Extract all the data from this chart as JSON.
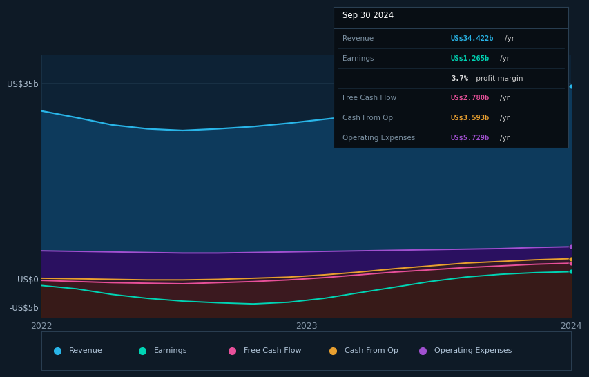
{
  "background_color": "#0e1a26",
  "chart_bg_color": "#0d2235",
  "grid_color": "#1b3347",
  "x_labels": [
    "2022",
    "2023",
    "2024"
  ],
  "ylim": [
    -7,
    40
  ],
  "yticks": [
    -5,
    0,
    35
  ],
  "ytick_labels": [
    "-US$5b",
    "US$0",
    "US$35b"
  ],
  "series": {
    "Revenue": {
      "color": "#29b5e8",
      "fill_color": "#0d3a5c",
      "x": [
        0.0,
        0.2,
        0.4,
        0.6,
        0.8,
        1.0,
        1.2,
        1.4,
        1.6,
        1.8,
        2.0,
        2.2,
        2.4,
        2.6,
        2.8,
        3.0
      ],
      "y": [
        30.0,
        28.8,
        27.5,
        26.8,
        26.5,
        26.8,
        27.2,
        27.8,
        28.5,
        29.2,
        30.0,
        31.0,
        32.0,
        33.0,
        33.8,
        34.422
      ]
    },
    "Earnings": {
      "color": "#00d4b4",
      "x": [
        0.0,
        0.2,
        0.4,
        0.6,
        0.8,
        1.0,
        1.2,
        1.4,
        1.6,
        1.8,
        2.0,
        2.2,
        2.4,
        2.6,
        2.8,
        3.0
      ],
      "y": [
        -1.2,
        -1.8,
        -2.8,
        -3.5,
        -4.0,
        -4.3,
        -4.5,
        -4.2,
        -3.5,
        -2.5,
        -1.5,
        -0.5,
        0.3,
        0.8,
        1.1,
        1.265
      ]
    },
    "FreeCashFlow": {
      "color": "#e8509a",
      "x": [
        0.0,
        0.2,
        0.4,
        0.6,
        0.8,
        1.0,
        1.2,
        1.4,
        1.6,
        1.8,
        2.0,
        2.2,
        2.4,
        2.6,
        2.8,
        3.0
      ],
      "y": [
        -0.3,
        -0.5,
        -0.7,
        -0.8,
        -0.9,
        -0.7,
        -0.5,
        -0.2,
        0.2,
        0.7,
        1.2,
        1.6,
        2.0,
        2.3,
        2.6,
        2.78
      ]
    },
    "CashFromOp": {
      "color": "#e8a030",
      "x": [
        0.0,
        0.2,
        0.4,
        0.6,
        0.8,
        1.0,
        1.2,
        1.4,
        1.6,
        1.8,
        2.0,
        2.2,
        2.4,
        2.6,
        2.8,
        3.0
      ],
      "y": [
        0.1,
        0.0,
        -0.1,
        -0.2,
        -0.2,
        -0.1,
        0.1,
        0.3,
        0.7,
        1.2,
        1.8,
        2.3,
        2.8,
        3.1,
        3.4,
        3.593
      ]
    },
    "OperatingExpenses": {
      "color": "#a050d0",
      "x": [
        0.0,
        0.2,
        0.4,
        0.6,
        0.8,
        1.0,
        1.2,
        1.4,
        1.6,
        1.8,
        2.0,
        2.2,
        2.4,
        2.6,
        2.8,
        3.0
      ],
      "y": [
        5.0,
        4.9,
        4.8,
        4.7,
        4.6,
        4.6,
        4.7,
        4.8,
        4.9,
        5.0,
        5.1,
        5.2,
        5.3,
        5.4,
        5.6,
        5.729
      ]
    }
  },
  "legend_items": [
    {
      "label": "Revenue",
      "color": "#29b5e8"
    },
    {
      "label": "Earnings",
      "color": "#00d4b4"
    },
    {
      "label": "Free Cash Flow",
      "color": "#e8509a"
    },
    {
      "label": "Cash From Op",
      "color": "#e8a030"
    },
    {
      "label": "Operating Expenses",
      "color": "#a050d0"
    }
  ]
}
